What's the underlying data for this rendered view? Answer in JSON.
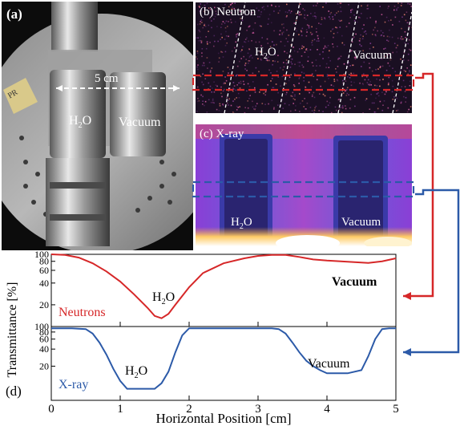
{
  "panel_a": {
    "label": "(a)",
    "scale_text": "5 cm",
    "cell1": "H",
    "cell1_sub": "2",
    "cell1_tail": "O",
    "cell2": "Vacuum",
    "tag": "PR"
  },
  "panel_b": {
    "label": "(b) Neutron",
    "cell1": "H",
    "cell1_sub": "2",
    "cell1_tail": "O",
    "cell2": "Vacuum"
  },
  "panel_c": {
    "label": "(c) X-ray",
    "cell1": "H",
    "cell1_sub": "2",
    "cell1_tail": "O",
    "cell2": "Vacuum"
  },
  "panel_d": {
    "label": "(d)",
    "ylabel": "Transmittance [%]",
    "xlabel": "Horizontal Position [cm]",
    "neutron_name": "Neutrons",
    "xray_name": "X-ray",
    "h2o_main": "H",
    "h2o_sub": "2",
    "h2o_tail": "O",
    "vacuum_top": "Vacuum",
    "vacuum_bottom": "Vacuum"
  },
  "colors": {
    "neutron": "#d62728",
    "xray": "#2c5aa8"
  },
  "chart_data": [
    {
      "type": "line",
      "series": [
        {
          "name": "Neutrons",
          "x": [
            0,
            0.2,
            0.4,
            0.6,
            0.8,
            1.0,
            1.2,
            1.4,
            1.5,
            1.6,
            1.7,
            1.8,
            2.0,
            2.2,
            2.5,
            2.8,
            3.0,
            3.2,
            3.4,
            3.6,
            3.8,
            4.0,
            4.2,
            4.4,
            4.6,
            4.8,
            5.0
          ],
          "y": [
            100,
            98,
            90,
            75,
            58,
            42,
            28,
            18,
            14,
            13,
            15,
            20,
            35,
            55,
            75,
            88,
            95,
            98,
            98,
            92,
            85,
            82,
            80,
            78,
            76,
            80,
            88
          ]
        }
      ],
      "xlim": [
        0,
        5
      ],
      "ylim": [
        10,
        100
      ],
      "yscale": "log",
      "yticks": [
        20,
        40,
        60,
        80,
        100
      ]
    },
    {
      "type": "line",
      "series": [
        {
          "name": "X-ray",
          "x": [
            0,
            0.3,
            0.5,
            0.6,
            0.7,
            0.8,
            0.9,
            1.0,
            1.1,
            1.3,
            1.5,
            1.6,
            1.7,
            1.8,
            1.9,
            2.0,
            2.2,
            2.5,
            3.0,
            3.2,
            3.3,
            3.4,
            3.5,
            3.6,
            3.7,
            3.8,
            3.9,
            4.0,
            4.3,
            4.5,
            4.6,
            4.7,
            4.8,
            4.9,
            5.0
          ],
          "y": [
            93,
            93,
            90,
            75,
            52,
            32,
            18,
            11,
            8,
            8,
            8,
            10,
            16,
            35,
            70,
            93,
            93,
            93,
            93,
            93,
            90,
            75,
            52,
            35,
            25,
            20,
            17,
            15,
            15,
            17,
            30,
            60,
            90,
            93,
            93
          ]
        }
      ],
      "xlim": [
        0,
        5
      ],
      "ylim": [
        5,
        100
      ],
      "yscale": "log",
      "yticks": [
        20,
        40,
        60,
        80,
        100
      ],
      "xticks": [
        0,
        1,
        2,
        3,
        4,
        5
      ],
      "xlabel": "Horizontal Position [cm]",
      "ylabel": "Transmittance [%]"
    }
  ]
}
